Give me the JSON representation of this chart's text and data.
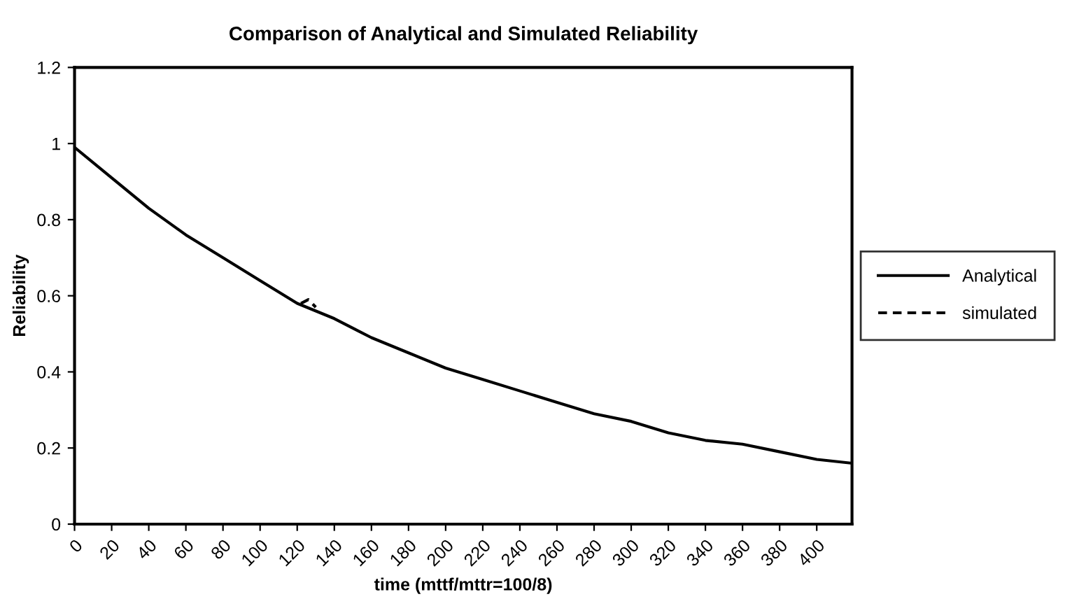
{
  "chart_data": {
    "type": "line",
    "title": "Comparison of Analytical and Simulated Reliability",
    "xlabel": "time (mttf/mttr=100/8)",
    "ylabel": "Reliability",
    "series": [
      {
        "name": "Analytical",
        "color": "#000000",
        "line_style": "solid",
        "x": [
          0,
          20,
          40,
          60,
          80,
          100,
          120,
          140,
          160,
          180,
          200,
          220,
          240,
          260,
          280,
          300,
          320,
          340,
          360,
          380,
          400,
          419
        ],
        "values": [
          0.99,
          0.91,
          0.83,
          0.76,
          0.7,
          0.64,
          0.58,
          0.54,
          0.49,
          0.45,
          0.41,
          0.38,
          0.35,
          0.32,
          0.29,
          0.27,
          0.24,
          0.22,
          0.21,
          0.19,
          0.17,
          0.16
        ]
      },
      {
        "name": "simulated",
        "color": "#000000",
        "line_style": "dashed",
        "x": [
          122,
          126,
          130
        ],
        "values": [
          0.58,
          0.59,
          0.57
        ]
      }
    ],
    "xlim": [
      0,
      419
    ],
    "xticks": [
      0,
      20,
      40,
      60,
      80,
      100,
      120,
      140,
      160,
      180,
      200,
      220,
      240,
      260,
      280,
      300,
      320,
      340,
      360,
      380,
      400
    ],
    "ylim": [
      0,
      1.2
    ],
    "yticks": [
      0,
      0.2,
      0.4,
      0.6,
      0.8,
      1,
      1.2
    ],
    "grid": false,
    "legend": "right",
    "marker": "none"
  }
}
